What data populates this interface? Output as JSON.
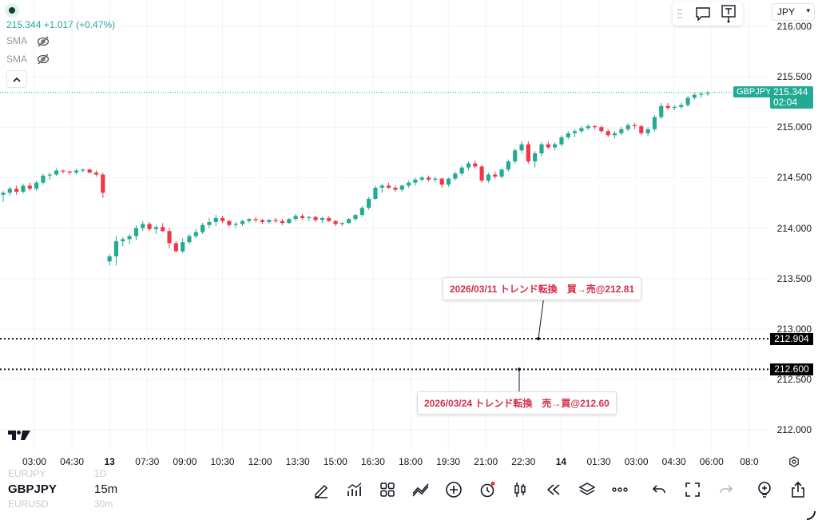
{
  "legend": {
    "price_line": "215.344  +1.017 (+0.47%)",
    "sma1": "SMA",
    "sma2": "SMA"
  },
  "currency": "JPY",
  "price_scale": {
    "ticks": [
      "216.000",
      "215.500",
      "215.000",
      "214.500",
      "214.000",
      "213.500",
      "213.000",
      "212.500",
      "212.000"
    ],
    "values": [
      216.0,
      215.5,
      215.0,
      214.5,
      214.0,
      213.5,
      213.0,
      212.5,
      212.0
    ]
  },
  "last_price": {
    "symbol": "GBPJPY",
    "price": "215.344",
    "countdown": "02:04",
    "value": 215.344
  },
  "levels": [
    {
      "label": "212.904",
      "value": 212.904
    },
    {
      "label": "212.600",
      "value": 212.6
    }
  ],
  "annotations": [
    {
      "text": "2026/03/11 トレンド転換　買→売@212.81"
    },
    {
      "text": "2026/03/24 トレンド転換　売→買@212.60"
    }
  ],
  "time_axis": [
    {
      "label": "03:00",
      "bold": false
    },
    {
      "label": "04:30",
      "bold": false
    },
    {
      "label": "13",
      "bold": true
    },
    {
      "label": "07:30",
      "bold": false
    },
    {
      "label": "09:00",
      "bold": false
    },
    {
      "label": "10:30",
      "bold": false
    },
    {
      "label": "12:00",
      "bold": false
    },
    {
      "label": "13:30",
      "bold": false
    },
    {
      "label": "15:00",
      "bold": false
    },
    {
      "label": "16:30",
      "bold": false
    },
    {
      "label": "18:00",
      "bold": false
    },
    {
      "label": "19:30",
      "bold": false
    },
    {
      "label": "21:00",
      "bold": false
    },
    {
      "label": "22:30",
      "bold": false
    },
    {
      "label": "14",
      "bold": true
    },
    {
      "label": "01:30",
      "bold": false
    },
    {
      "label": "03:00",
      "bold": false
    },
    {
      "label": "04:30",
      "bold": false
    },
    {
      "label": "06:00",
      "bold": false
    },
    {
      "label": "08:0",
      "bold": false
    }
  ],
  "bottom": {
    "ghost_top": "EURJPY",
    "ghost_top_tf": "1D",
    "symbol": "GBPJPY",
    "timeframe": "15m",
    "ghost_bottom": "EURUSD",
    "ghost_bottom_tf": "30m"
  },
  "colors": {
    "up": "#22ab94",
    "down": "#f23645",
    "accent": "#22ab94",
    "annotation": "#d32f4a"
  },
  "chart_data": {
    "type": "candlestick",
    "symbol": "GBPJPY",
    "timeframe": "15m",
    "ylim": [
      211.78,
      216.26
    ],
    "candles": [
      [
        214.33,
        214.37,
        214.26,
        214.35
      ],
      [
        214.35,
        214.41,
        214.32,
        214.39
      ],
      [
        214.39,
        214.42,
        214.33,
        214.36
      ],
      [
        214.36,
        214.44,
        214.34,
        214.42
      ],
      [
        214.42,
        214.45,
        214.37,
        214.39
      ],
      [
        214.39,
        214.47,
        214.37,
        214.45
      ],
      [
        214.45,
        214.54,
        214.43,
        214.52
      ],
      [
        214.52,
        214.55,
        214.48,
        214.53
      ],
      [
        214.53,
        214.59,
        214.52,
        214.57
      ],
      [
        214.57,
        214.58,
        214.54,
        214.56
      ],
      [
        214.56,
        214.57,
        214.53,
        214.55
      ],
      [
        214.55,
        214.59,
        214.53,
        214.57
      ],
      [
        214.57,
        214.59,
        214.55,
        214.58
      ],
      [
        214.58,
        214.59,
        214.54,
        214.55
      ],
      [
        214.55,
        214.57,
        214.51,
        214.53
      ],
      [
        214.53,
        214.55,
        214.3,
        214.35
      ],
      [
        213.67,
        213.74,
        213.63,
        213.72
      ],
      [
        213.72,
        213.92,
        213.63,
        213.87
      ],
      [
        213.87,
        213.91,
        213.82,
        213.89
      ],
      [
        213.89,
        213.94,
        213.84,
        213.92
      ],
      [
        213.92,
        214.03,
        213.88,
        214.0
      ],
      [
        214.0,
        214.07,
        213.97,
        214.04
      ],
      [
        214.04,
        214.06,
        213.97,
        213.99
      ],
      [
        213.99,
        214.03,
        213.94,
        214.01
      ],
      [
        214.01,
        214.05,
        213.96,
        213.97
      ],
      [
        213.97,
        214.0,
        213.8,
        213.85
      ],
      [
        213.85,
        213.87,
        213.76,
        213.77
      ],
      [
        213.77,
        213.9,
        213.75,
        213.86
      ],
      [
        213.86,
        213.94,
        213.84,
        213.92
      ],
      [
        213.92,
        213.99,
        213.9,
        213.96
      ],
      [
        213.96,
        214.05,
        213.94,
        214.03
      ],
      [
        214.03,
        214.1,
        214.0,
        214.06
      ],
      [
        214.06,
        214.13,
        214.02,
        214.1
      ],
      [
        214.1,
        214.12,
        214.05,
        214.07
      ],
      [
        214.07,
        214.08,
        214.01,
        214.03
      ],
      [
        214.03,
        214.06,
        214.0,
        214.04
      ],
      [
        214.04,
        214.08,
        214.02,
        214.07
      ],
      [
        214.07,
        214.1,
        214.05,
        214.09
      ],
      [
        214.09,
        214.11,
        214.06,
        214.08
      ],
      [
        214.08,
        214.09,
        214.04,
        214.06
      ],
      [
        214.06,
        214.09,
        214.04,
        214.08
      ],
      [
        214.08,
        214.1,
        214.05,
        214.07
      ],
      [
        214.07,
        214.09,
        214.03,
        214.05
      ],
      [
        214.05,
        214.1,
        214.04,
        214.09
      ],
      [
        214.09,
        214.14,
        214.07,
        214.12
      ],
      [
        214.12,
        214.14,
        214.08,
        214.1
      ],
      [
        214.1,
        214.12,
        214.07,
        214.11
      ],
      [
        214.11,
        214.12,
        214.06,
        214.08
      ],
      [
        214.08,
        214.11,
        214.05,
        214.1
      ],
      [
        214.1,
        214.12,
        214.06,
        214.07
      ],
      [
        214.07,
        214.08,
        214.02,
        214.04
      ],
      [
        214.04,
        214.06,
        214.02,
        214.05
      ],
      [
        214.05,
        214.1,
        214.04,
        214.09
      ],
      [
        214.09,
        214.14,
        214.07,
        214.13
      ],
      [
        214.13,
        214.22,
        214.11,
        214.2
      ],
      [
        214.2,
        214.31,
        214.18,
        214.29
      ],
      [
        214.29,
        214.42,
        214.28,
        214.4
      ],
      [
        214.4,
        214.44,
        214.35,
        214.42
      ],
      [
        214.42,
        214.45,
        214.39,
        214.4
      ],
      [
        214.4,
        214.42,
        214.36,
        214.38
      ],
      [
        214.38,
        214.43,
        214.36,
        214.42
      ],
      [
        214.42,
        214.47,
        214.4,
        214.45
      ],
      [
        214.45,
        214.5,
        214.42,
        214.48
      ],
      [
        214.48,
        214.52,
        214.46,
        214.5
      ],
      [
        214.5,
        214.52,
        214.46,
        214.48
      ],
      [
        214.48,
        214.51,
        214.45,
        214.49
      ],
      [
        214.49,
        214.5,
        214.4,
        214.43
      ],
      [
        214.43,
        214.5,
        214.41,
        214.49
      ],
      [
        214.49,
        214.56,
        214.47,
        214.54
      ],
      [
        214.54,
        214.62,
        214.52,
        214.6
      ],
      [
        214.6,
        214.66,
        214.57,
        214.64
      ],
      [
        214.64,
        214.67,
        214.59,
        214.61
      ],
      [
        214.61,
        214.63,
        214.45,
        214.47
      ],
      [
        214.47,
        214.55,
        214.45,
        214.53
      ],
      [
        214.53,
        214.56,
        214.49,
        214.51
      ],
      [
        214.51,
        214.59,
        214.49,
        214.58
      ],
      [
        214.58,
        214.68,
        214.56,
        214.66
      ],
      [
        214.66,
        214.79,
        214.64,
        214.77
      ],
      [
        214.77,
        214.86,
        214.74,
        214.83
      ],
      [
        214.83,
        214.86,
        214.64,
        214.66
      ],
      [
        214.66,
        214.76,
        214.6,
        214.74
      ],
      [
        214.74,
        214.85,
        214.71,
        214.83
      ],
      [
        214.83,
        214.86,
        214.78,
        214.8
      ],
      [
        214.8,
        214.85,
        214.77,
        214.83
      ],
      [
        214.83,
        214.92,
        214.81,
        214.9
      ],
      [
        214.9,
        214.96,
        214.88,
        214.94
      ],
      [
        214.94,
        214.98,
        214.9,
        214.96
      ],
      [
        214.96,
        215.01,
        214.94,
        214.99
      ],
      [
        214.99,
        215.03,
        214.97,
        215.01
      ],
      [
        215.01,
        215.02,
        214.98,
        215.0
      ],
      [
        215.0,
        215.02,
        214.94,
        214.96
      ],
      [
        214.96,
        214.98,
        214.9,
        214.92
      ],
      [
        214.92,
        214.96,
        214.89,
        214.94
      ],
      [
        214.94,
        215.0,
        214.92,
        214.98
      ],
      [
        214.98,
        215.04,
        214.96,
        215.02
      ],
      [
        215.02,
        215.04,
        214.98,
        215.01
      ],
      [
        215.01,
        215.02,
        214.92,
        214.94
      ],
      [
        214.94,
        215.0,
        214.91,
        214.98
      ],
      [
        214.98,
        215.12,
        214.96,
        215.1
      ],
      [
        215.1,
        215.24,
        215.08,
        215.21
      ],
      [
        215.21,
        215.24,
        215.17,
        215.19
      ],
      [
        215.19,
        215.22,
        215.17,
        215.2
      ],
      [
        215.2,
        215.24,
        215.18,
        215.22
      ],
      [
        215.22,
        215.31,
        215.2,
        215.29
      ],
      [
        215.29,
        215.34,
        215.27,
        215.32
      ],
      [
        215.32,
        215.35,
        215.29,
        215.33
      ],
      [
        215.33,
        215.36,
        215.31,
        215.34
      ]
    ]
  }
}
